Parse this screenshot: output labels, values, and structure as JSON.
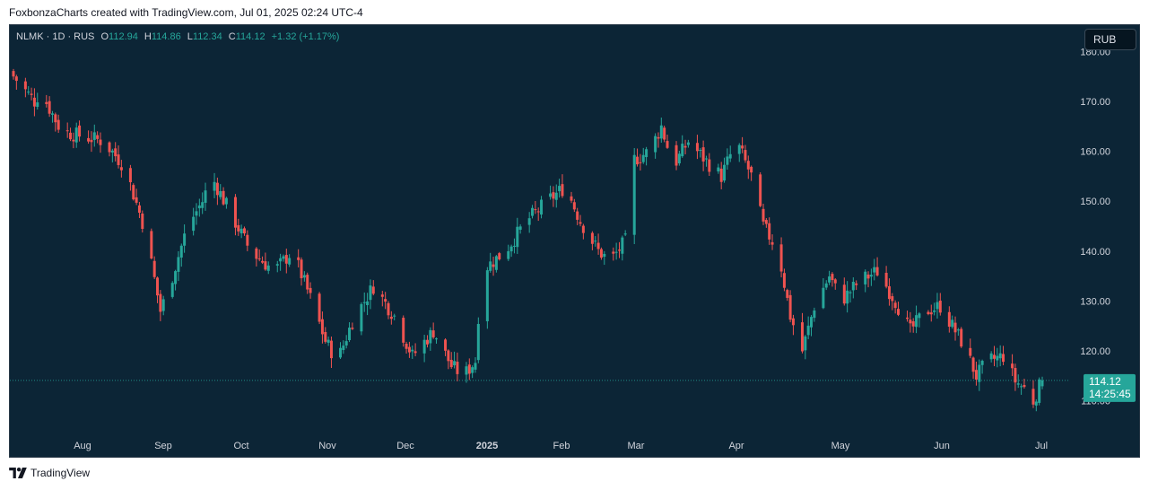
{
  "header": {
    "attribution": "FoxbonzaCharts created with TradingView.com, Jul 01, 2025 02:24 UTC-4"
  },
  "legend": {
    "symbol": "NLMK · 1D · RUS",
    "o_label": "O",
    "o_value": "112.94",
    "h_label": "H",
    "h_value": "114.86",
    "l_label": "L",
    "l_value": "112.34",
    "c_label": "C",
    "c_value": "114.12",
    "change": "+1.32 (+1.17%)"
  },
  "currency_button": "RUB",
  "footer": {
    "brand": "TradingView",
    "logo_icon": "tradingview-logo-icon"
  },
  "colors": {
    "background": "#0c2536",
    "up": "#26a69a",
    "down": "#ef5350",
    "price_tag": "#26a69a"
  },
  "chart_data": {
    "type": "candlestick",
    "title": "NLMK · 1D · RUS",
    "currency": "RUB",
    "ylim": [
      106,
      184
    ],
    "y_ticks": [
      "180.00",
      "170.00",
      "160.00",
      "150.00",
      "140.00",
      "130.00",
      "120.00",
      "110.00"
    ],
    "x_ticks": [
      "Aug",
      "Sep",
      "Oct",
      "Nov",
      "Dec",
      "2025",
      "Feb",
      "Mar",
      "Apr",
      "May",
      "Jun",
      "Jul"
    ],
    "last_price": {
      "value": 114.12,
      "label": "114.12",
      "countdown": "14:25:45"
    },
    "approx_close_path": [
      {
        "date": "Jul 23",
        "close": 175
      },
      {
        "date": "Jul 30",
        "close": 170
      },
      {
        "date": "Aug 1",
        "close": 172
      },
      {
        "date": "Aug 8",
        "close": 164
      },
      {
        "date": "Aug 15",
        "close": 163
      },
      {
        "date": "Aug 22",
        "close": 162
      },
      {
        "date": "Aug 29",
        "close": 157
      },
      {
        "date": "Sep 5",
        "close": 144
      },
      {
        "date": "Sep 10",
        "close": 128
      },
      {
        "date": "Sep 13",
        "close": 133
      },
      {
        "date": "Sep 19",
        "close": 145
      },
      {
        "date": "Sep 24",
        "close": 150
      },
      {
        "date": "Sep 27",
        "close": 155
      },
      {
        "date": "Oct 3",
        "close": 148
      },
      {
        "date": "Oct 10",
        "close": 140
      },
      {
        "date": "Oct 18",
        "close": 136
      },
      {
        "date": "Oct 24",
        "close": 140
      },
      {
        "date": "Oct 31",
        "close": 129
      },
      {
        "date": "Nov 4",
        "close": 122
      },
      {
        "date": "Nov 8",
        "close": 118
      },
      {
        "date": "Nov 13",
        "close": 126
      },
      {
        "date": "Nov 20",
        "close": 133
      },
      {
        "date": "Nov 27",
        "close": 127
      },
      {
        "date": "Dec 3",
        "close": 119
      },
      {
        "date": "Dec 10",
        "close": 124
      },
      {
        "date": "Dec 16",
        "close": 117
      },
      {
        "date": "Dec 20",
        "close": 115
      },
      {
        "date": "Dec 24",
        "close": 118
      },
      {
        "date": "Dec 26",
        "close": 136
      },
      {
        "date": "Jan 3",
        "close": 140
      },
      {
        "date": "Jan 10",
        "close": 146
      },
      {
        "date": "Jan 17",
        "close": 150
      },
      {
        "date": "Jan 23",
        "close": 153
      },
      {
        "date": "Jan 28",
        "close": 146
      },
      {
        "date": "Feb 3",
        "close": 140
      },
      {
        "date": "Feb 7",
        "close": 138
      },
      {
        "date": "Feb 12",
        "close": 142
      },
      {
        "date": "Feb 14",
        "close": 158
      },
      {
        "date": "Feb 20",
        "close": 160
      },
      {
        "date": "Feb 24",
        "close": 165
      },
      {
        "date": "Feb 28",
        "close": 157
      },
      {
        "date": "Mar 5",
        "close": 162
      },
      {
        "date": "Mar 11",
        "close": 158
      },
      {
        "date": "Mar 16",
        "close": 155
      },
      {
        "date": "Mar 21",
        "close": 162
      },
      {
        "date": "Mar 26",
        "close": 155
      },
      {
        "date": "Mar 30",
        "close": 145
      },
      {
        "date": "Apr 4",
        "close": 140
      },
      {
        "date": "Apr 8",
        "close": 127
      },
      {
        "date": "Apr 12",
        "close": 120
      },
      {
        "date": "Apr 16",
        "close": 129
      },
      {
        "date": "Apr 21",
        "close": 135
      },
      {
        "date": "Apr 25",
        "close": 130
      },
      {
        "date": "May 1",
        "close": 134
      },
      {
        "date": "May 7",
        "close": 136
      },
      {
        "date": "May 13",
        "close": 130
      },
      {
        "date": "May 18",
        "close": 124
      },
      {
        "date": "May 23",
        "close": 128
      },
      {
        "date": "May 28",
        "close": 129
      },
      {
        "date": "Jun 1",
        "close": 125
      },
      {
        "date": "Jun 5",
        "close": 121
      },
      {
        "date": "Jun 9",
        "close": 115
      },
      {
        "date": "Jun 13",
        "close": 118
      },
      {
        "date": "Jun 18",
        "close": 119
      },
      {
        "date": "Jun 22",
        "close": 114
      },
      {
        "date": "Jun 26",
        "close": 112
      },
      {
        "date": "Jun 28",
        "close": 110
      },
      {
        "date": "Jun 30",
        "close": 112.8
      },
      {
        "date": "Jul 1",
        "close": 114.12
      }
    ]
  }
}
